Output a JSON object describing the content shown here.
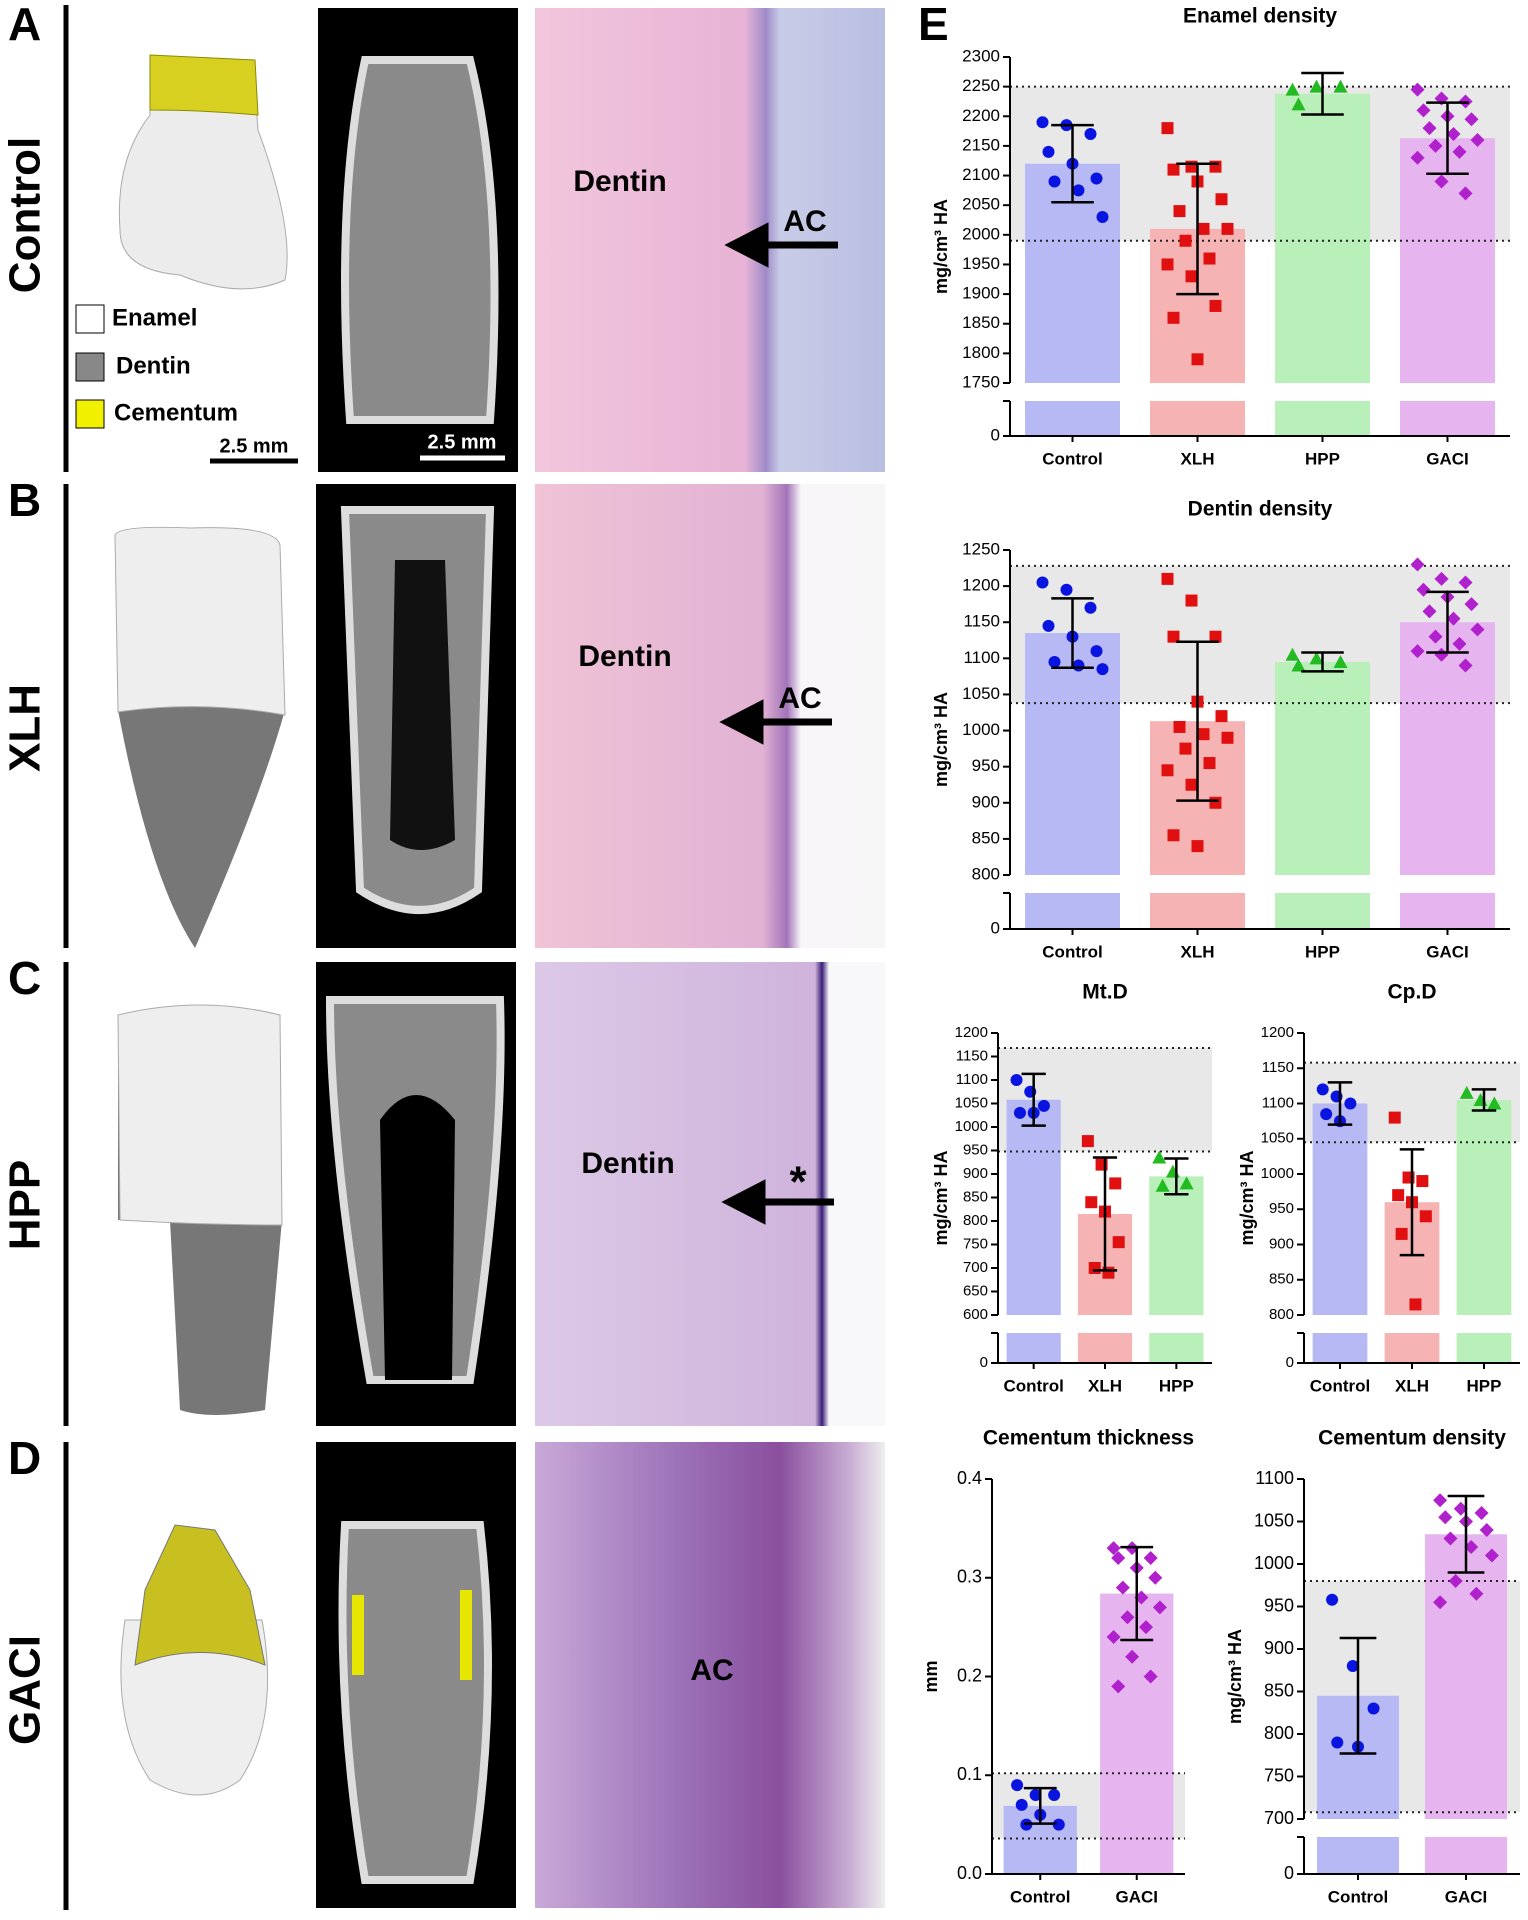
{
  "panels": [
    "A",
    "B",
    "C",
    "D",
    "E"
  ],
  "rows": [
    "Control",
    "XLH",
    "HPP",
    "GACI"
  ],
  "legend": [
    "Enamel",
    "Dentin",
    "Cementum"
  ],
  "scale_bars": [
    "2.5 mm",
    "2.5 mm"
  ],
  "histology_labels": [
    [
      "Dentin",
      "AC"
    ],
    [
      "Dentin",
      "AC"
    ],
    [
      "Dentin",
      "*"
    ],
    [
      "AC"
    ]
  ],
  "chart_data": [
    {
      "type": "bar",
      "title": "Enamel density",
      "ylabel": "mg/cm³ HA",
      "categories": [
        "Control",
        "XLH",
        "HPP",
        "GACI"
      ],
      "values": [
        2120,
        2010,
        2238,
        2163
      ],
      "errors": [
        65,
        110,
        35,
        60
      ],
      "points": [
        [
          2190,
          2185,
          2170,
          2140,
          2120,
          2095,
          2090,
          2075,
          2030
        ],
        [
          2180,
          2115,
          2115,
          2110,
          2090,
          2060,
          2040,
          2010,
          2010,
          1990,
          1960,
          1950,
          1930,
          1880,
          1860,
          1790
        ],
        [
          2245,
          2250,
          2250,
          2220
        ],
        [
          2245,
          2230,
          2225,
          2210,
          2200,
          2195,
          2180,
          2170,
          2160,
          2150,
          2140,
          2130,
          2090,
          2070
        ]
      ],
      "point_colors": [
        "#0a14e0",
        "#e01010",
        "#22bb22",
        "#b020cc"
      ],
      "bar_colors": [
        "#b7b9f4",
        "#f5b3b3",
        "#b9f0b9",
        "#e6b5f0"
      ],
      "markers": [
        "circle",
        "square",
        "triangle",
        "diamond"
      ],
      "normal_range": [
        1990,
        2250
      ],
      "ylim": [
        1750,
        2300
      ],
      "yticks": [
        1750,
        1800,
        1850,
        1900,
        1950,
        2000,
        2050,
        2100,
        2150,
        2200,
        2250,
        2300
      ],
      "lower_yticks": [
        0
      ]
    },
    {
      "type": "bar",
      "title": "Dentin density",
      "ylabel": "mg/cm³ HA",
      "categories": [
        "Control",
        "XLH",
        "HPP",
        "GACI"
      ],
      "values": [
        1135,
        1013,
        1095,
        1150
      ],
      "errors": [
        48,
        110,
        13,
        42
      ],
      "points": [
        [
          1205,
          1195,
          1170,
          1145,
          1130,
          1110,
          1095,
          1090,
          1085
        ],
        [
          1210,
          1180,
          1130,
          1130,
          1040,
          1020,
          1005,
          995,
          990,
          975,
          955,
          945,
          925,
          900,
          855,
          840
        ],
        [
          1105,
          1100,
          1095,
          1090
        ],
        [
          1230,
          1210,
          1205,
          1195,
          1185,
          1175,
          1165,
          1155,
          1140,
          1130,
          1120,
          1110,
          1105,
          1090
        ]
      ],
      "point_colors": [
        "#0a14e0",
        "#e01010",
        "#22bb22",
        "#b020cc"
      ],
      "bar_colors": [
        "#b7b9f4",
        "#f5b3b3",
        "#b9f0b9",
        "#e6b5f0"
      ],
      "markers": [
        "circle",
        "square",
        "triangle",
        "diamond"
      ],
      "normal_range": [
        1038,
        1228
      ],
      "ylim": [
        800,
        1250
      ],
      "yticks": [
        800,
        850,
        900,
        950,
        1000,
        1050,
        1100,
        1150,
        1200,
        1250
      ],
      "lower_yticks": [
        0
      ]
    },
    {
      "type": "bar",
      "title": "Mt.D",
      "ylabel": "mg/cm³ HA",
      "categories": [
        "Control",
        "XLH",
        "HPP"
      ],
      "values": [
        1058,
        815,
        895
      ],
      "errors": [
        55,
        120,
        38
      ],
      "points": [
        [
          1100,
          1075,
          1045,
          1030,
          1030
        ],
        [
          970,
          920,
          880,
          840,
          820,
          755,
          700,
          690
        ],
        [
          935,
          905,
          880,
          875
        ]
      ],
      "point_colors": [
        "#0a14e0",
        "#e01010",
        "#22bb22"
      ],
      "bar_colors": [
        "#b7b9f4",
        "#f5b3b3",
        "#b9f0b9"
      ],
      "markers": [
        "circle",
        "square",
        "triangle"
      ],
      "normal_range": [
        948,
        1168
      ],
      "ylim": [
        600,
        1200
      ],
      "yticks": [
        600,
        650,
        700,
        750,
        800,
        850,
        900,
        950,
        1000,
        1050,
        1100,
        1150,
        1200
      ],
      "lower_yticks": [
        0
      ]
    },
    {
      "type": "bar",
      "title": "Cp.D",
      "ylabel": "mg/cm³ HA",
      "categories": [
        "Control",
        "XLH",
        "HPP"
      ],
      "values": [
        1100,
        960,
        1105
      ],
      "errors": [
        30,
        75,
        15
      ],
      "points": [
        [
          1120,
          1110,
          1100,
          1085,
          1075
        ],
        [
          1080,
          995,
          990,
          970,
          960,
          940,
          915,
          815
        ],
        [
          1115,
          1105,
          1100
        ]
      ],
      "point_colors": [
        "#0a14e0",
        "#e01010",
        "#22bb22"
      ],
      "bar_colors": [
        "#b7b9f4",
        "#f5b3b3",
        "#b9f0b9"
      ],
      "markers": [
        "circle",
        "square",
        "triangle"
      ],
      "normal_range": [
        1045,
        1158
      ],
      "ylim": [
        800,
        1200
      ],
      "yticks": [
        800,
        850,
        900,
        950,
        1000,
        1050,
        1100,
        1150,
        1200
      ],
      "lower_yticks": [
        0
      ]
    },
    {
      "type": "bar",
      "title": "Cementum thickness",
      "ylabel": "mm",
      "categories": [
        "Control",
        "GACI"
      ],
      "values": [
        0.069,
        0.284
      ],
      "errors": [
        0.018,
        0.047
      ],
      "points": [
        [
          0.09,
          0.08,
          0.08,
          0.07,
          0.06,
          0.05,
          0.05
        ],
        [
          0.33,
          0.33,
          0.32,
          0.32,
          0.31,
          0.3,
          0.29,
          0.28,
          0.27,
          0.26,
          0.25,
          0.24,
          0.22,
          0.2,
          0.19
        ]
      ],
      "point_colors": [
        "#0a14e0",
        "#b020cc"
      ],
      "bar_colors": [
        "#b7b9f4",
        "#e6b5f0"
      ],
      "markers": [
        "circle",
        "diamond"
      ],
      "normal_range": [
        0.036,
        0.102
      ],
      "ylim": [
        0,
        0.4
      ],
      "yticks": [
        {
          "value": 0,
          "label": "0.0"
        },
        0.1,
        0.2,
        0.3,
        0.4
      ]
    },
    {
      "type": "bar",
      "title": "Cementum density",
      "ylabel": "mg/cm³ HA",
      "categories": [
        "Control",
        "GACI"
      ],
      "values": [
        845,
        1035
      ],
      "errors": [
        68,
        45
      ],
      "points": [
        [
          958,
          880,
          830,
          790,
          785
        ],
        [
          1075,
          1065,
          1060,
          1055,
          1050,
          1040,
          1030,
          1020,
          1010,
          980,
          965,
          955
        ]
      ],
      "point_colors": [
        "#0a14e0",
        "#b020cc"
      ],
      "bar_colors": [
        "#b7b9f4",
        "#e6b5f0"
      ],
      "markers": [
        "circle",
        "diamond"
      ],
      "normal_range": [
        708,
        980
      ],
      "ylim": [
        700,
        1100
      ],
      "yticks": [
        700,
        750,
        800,
        850,
        900,
        950,
        1000,
        1050,
        1100
      ],
      "lower_yticks": [
        0
      ]
    }
  ]
}
